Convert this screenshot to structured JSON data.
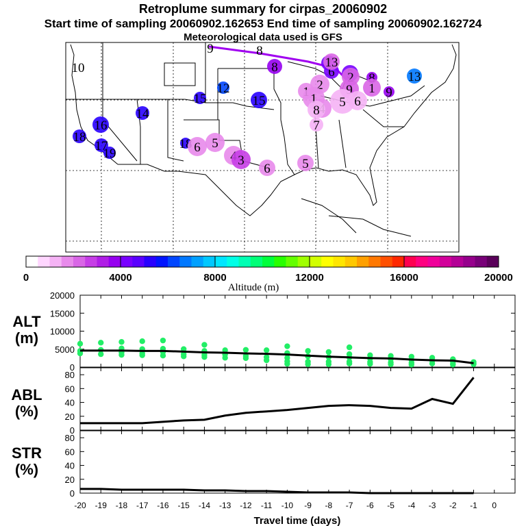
{
  "header": {
    "title": "Retroplume summary for cirpas_20060902",
    "sampling_line": "Start time of sampling 20060902.162653     End time of sampling 20060902.162724",
    "met_line": "Meteorological data used is GFS"
  },
  "colorbar": {
    "label": "Altitude (m)",
    "ticks": [
      "0",
      "4000",
      "8000",
      "12000",
      "16000",
      "20000"
    ],
    "colors": [
      "#ffffff",
      "#ffd6ff",
      "#f5b3f5",
      "#e88aeb",
      "#d966e6",
      "#c63ee6",
      "#b01ee6",
      "#9600f0",
      "#7800ff",
      "#5a00ff",
      "#2800ff",
      "#0014ff",
      "#0046ff",
      "#0078ff",
      "#00a0ff",
      "#00c8ff",
      "#00e6ff",
      "#00ffe6",
      "#00ffb4",
      "#00ff78",
      "#00ff3c",
      "#28ff00",
      "#64ff00",
      "#a0ff00",
      "#d2ff00",
      "#ffff00",
      "#ffe600",
      "#ffc800",
      "#ffa000",
      "#ff7800",
      "#ff5000",
      "#ff2800",
      "#ff0050",
      "#ff0080",
      "#f0009a",
      "#d2009a",
      "#b40096",
      "#96008c",
      "#780078",
      "#5a005a"
    ]
  },
  "map_labels": [
    {
      "text": "9",
      "color": "#9600f0",
      "r": 0
    },
    {
      "text": "8",
      "color": "#d966e6",
      "r": 0
    },
    {
      "text": "10",
      "color": "#5a00ff",
      "r": 0
    },
    {
      "text": "8",
      "color": "#9600f0",
      "r": 11
    },
    {
      "text": "7",
      "color": "#7800ff",
      "r": 11
    },
    {
      "text": "6",
      "color": "#7800ff",
      "r": 11
    },
    {
      "text": "5",
      "color": "#7800ff",
      "r": 12
    },
    {
      "text": "8",
      "color": "#9600f0",
      "r": 8
    },
    {
      "text": "9",
      "color": "#9600f0",
      "r": 8
    },
    {
      "text": "13",
      "color": "#0078ff",
      "r": 11
    },
    {
      "text": "15",
      "color": "#2800ff",
      "r": 9
    },
    {
      "text": "12",
      "color": "#0046ff",
      "r": 9
    },
    {
      "text": "15",
      "color": "#2800ff",
      "r": 12
    },
    {
      "text": "14",
      "color": "#2800ff",
      "r": 10
    },
    {
      "text": "16",
      "color": "#2800ff",
      "r": 12
    },
    {
      "text": "18",
      "color": "#2800ff",
      "r": 10
    },
    {
      "text": "17",
      "color": "#2800ff",
      "r": 10
    },
    {
      "text": "19",
      "color": "#2800ff",
      "r": 9
    },
    {
      "text": "18",
      "color": "#2800ff",
      "r": 8
    },
    {
      "text": "6",
      "color": "#e88aeb",
      "r": 14
    },
    {
      "text": "5",
      "color": "#e88aeb",
      "r": 14
    },
    {
      "text": "4",
      "color": "#e88aeb",
      "r": 14
    },
    {
      "text": "3",
      "color": "#c63ee6",
      "r": 14
    },
    {
      "text": "6",
      "color": "#e88aeb",
      "r": 12
    },
    {
      "text": "5",
      "color": "#e88aeb",
      "r": 12
    },
    {
      "text": "13",
      "color": "#d966e6",
      "r": 12
    },
    {
      "text": "2",
      "color": "#d966e6",
      "r": 13
    },
    {
      "text": "1",
      "color": "#d966e6",
      "r": 13
    },
    {
      "text": "9",
      "color": "#d966e6",
      "r": 14
    },
    {
      "text": "2",
      "color": "#e88aeb",
      "r": 14
    },
    {
      "text": "1",
      "color": "#e88aeb",
      "r": 12
    },
    {
      "text": "1",
      "color": "#e88aeb",
      "r": 16
    },
    {
      "text": "4",
      "color": "#e88aeb",
      "r": 14
    },
    {
      "text": "5",
      "color": "#f5b3f5",
      "r": 18
    },
    {
      "text": "6",
      "color": "#f5b3f5",
      "r": 14
    },
    {
      "text": "8",
      "color": "#f5b3f5",
      "r": 13
    },
    {
      "text": "7",
      "color": "#f5b3f5",
      "r": 10
    }
  ],
  "chart_data": [
    {
      "type": "scatter",
      "panel": "ALT",
      "label_line1": "ALT",
      "label_line2": "(m)",
      "x": [
        -20,
        -19,
        -18,
        -17,
        -16,
        -15,
        -14,
        -13,
        -12,
        -11,
        -10,
        -9,
        -8,
        -7,
        -6,
        -5,
        -4,
        -3,
        -2,
        -1
      ],
      "line_y": [
        4600,
        4600,
        4600,
        4500,
        4500,
        4300,
        4100,
        4000,
        3800,
        3700,
        3500,
        3200,
        2900,
        2700,
        2500,
        2400,
        2100,
        1900,
        1800,
        1100
      ],
      "scatter_points": [
        [
          -20,
          6500
        ],
        [
          -20,
          4500
        ],
        [
          -20,
          3800
        ],
        [
          -19,
          6800
        ],
        [
          -19,
          4800
        ],
        [
          -19,
          3600
        ],
        [
          -18,
          5200
        ],
        [
          -18,
          4100
        ],
        [
          -18,
          3400
        ],
        [
          -18,
          7000
        ],
        [
          -17,
          5000
        ],
        [
          -17,
          3800
        ],
        [
          -17,
          3300
        ],
        [
          -17,
          7200
        ],
        [
          -16,
          5100
        ],
        [
          -16,
          4200
        ],
        [
          -16,
          3200
        ],
        [
          -16,
          7400
        ],
        [
          -15,
          5000
        ],
        [
          -15,
          3600
        ],
        [
          -15,
          3000
        ],
        [
          -14,
          4500
        ],
        [
          -14,
          3400
        ],
        [
          -14,
          2800
        ],
        [
          -14,
          6200
        ],
        [
          -13,
          4700
        ],
        [
          -13,
          3500
        ],
        [
          -13,
          2600
        ],
        [
          -12,
          4800
        ],
        [
          -12,
          3100
        ],
        [
          -12,
          2500
        ],
        [
          -11,
          4700
        ],
        [
          -11,
          2800
        ],
        [
          -11,
          1900
        ],
        [
          -10,
          3900
        ],
        [
          -10,
          2600
        ],
        [
          -10,
          1600
        ],
        [
          -10,
          900
        ],
        [
          -10,
          5800
        ],
        [
          -9,
          4500
        ],
        [
          -9,
          3000
        ],
        [
          -9,
          1500
        ],
        [
          -9,
          800
        ],
        [
          -8,
          4200
        ],
        [
          -8,
          2800
        ],
        [
          -8,
          1500
        ],
        [
          -8,
          800
        ],
        [
          -7,
          3600
        ],
        [
          -7,
          2700
        ],
        [
          -7,
          1500
        ],
        [
          -7,
          1000
        ],
        [
          -7,
          5500
        ],
        [
          -6,
          3300
        ],
        [
          -6,
          2400
        ],
        [
          -6,
          1400
        ],
        [
          -6,
          900
        ],
        [
          -5,
          3100
        ],
        [
          -5,
          2200
        ],
        [
          -5,
          1300
        ],
        [
          -5,
          800
        ],
        [
          -4,
          2900
        ],
        [
          -4,
          2000
        ],
        [
          -4,
          1200
        ],
        [
          -4,
          700
        ],
        [
          -3,
          2600
        ],
        [
          -3,
          1800
        ],
        [
          -3,
          1000
        ],
        [
          -2,
          2200
        ],
        [
          -2,
          1500
        ],
        [
          -2,
          900
        ],
        [
          -2,
          700
        ],
        [
          -1,
          1400
        ],
        [
          -1,
          1000
        ],
        [
          -1,
          800
        ]
      ],
      "ylim": [
        0,
        20000
      ],
      "yticks": [
        "0",
        "5000",
        "10000",
        "15000",
        "20000"
      ],
      "point_color": "#22ee66"
    },
    {
      "type": "line",
      "panel": "ABL",
      "label_line1": "ABL",
      "label_line2": "(%)",
      "x": [
        -20,
        -19,
        -18,
        -17,
        -16,
        -15,
        -14,
        -13,
        -12,
        -11,
        -10,
        -9,
        -8,
        -7,
        -6,
        -5,
        -4,
        -3,
        -2,
        -1
      ],
      "y": [
        10,
        10,
        10,
        10,
        12,
        14,
        15,
        21,
        25,
        27,
        29,
        32,
        35,
        36,
        35,
        32,
        31,
        45,
        38,
        76
      ],
      "ylim": [
        0,
        90
      ],
      "yticks": [
        "0",
        "20",
        "40",
        "60",
        "80"
      ]
    },
    {
      "type": "line",
      "panel": "STR",
      "label_line1": "STR",
      "label_line2": "(%)",
      "x": [
        -20,
        -19,
        -18,
        -17,
        -16,
        -15,
        -14,
        -13,
        -12,
        -11,
        -10,
        -9,
        -8,
        -7,
        -6,
        -5,
        -4,
        -3,
        -2,
        -1
      ],
      "y": [
        6,
        6,
        5,
        5,
        5,
        5,
        4,
        4,
        3,
        3,
        2,
        1,
        1,
        1,
        0,
        0,
        0,
        0,
        0,
        0
      ],
      "ylim": [
        0,
        90
      ],
      "yticks": [
        "0",
        "20",
        "40",
        "60",
        "80"
      ],
      "xlabel": "Travel time (days)",
      "xticks": [
        "-20",
        "-19",
        "-18",
        "-17",
        "-16",
        "-15",
        "-14",
        "-13",
        "-12",
        "-11",
        "-10",
        "-9",
        "-8",
        "-7",
        "-6",
        "-5",
        "-4",
        "-3",
        "-2",
        "-1",
        "0"
      ]
    }
  ]
}
